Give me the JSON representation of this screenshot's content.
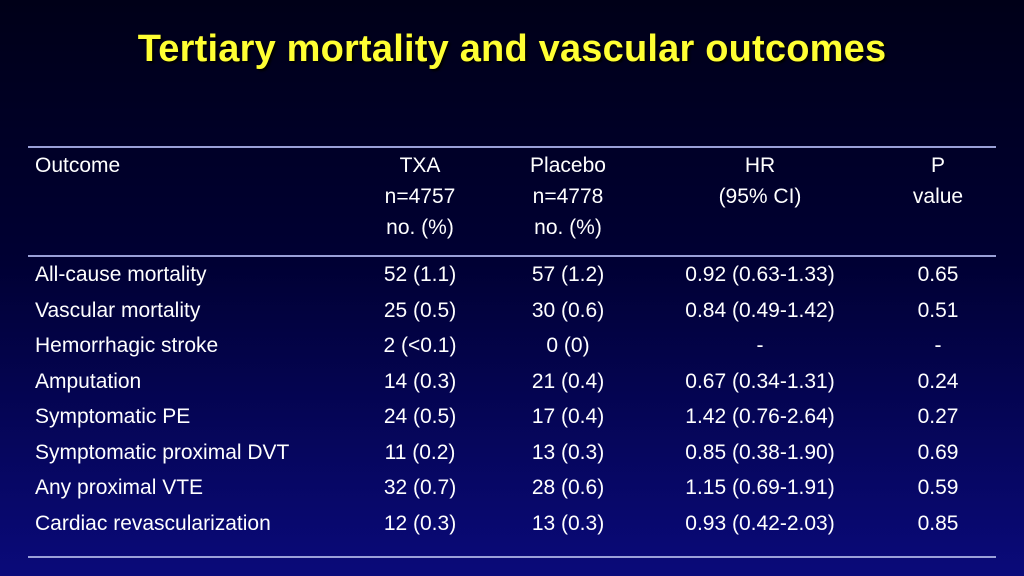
{
  "slide": {
    "title": "Tertiary mortality and vascular outcomes"
  },
  "table": {
    "header": {
      "outcome": "Outcome",
      "txa": [
        "TXA",
        "n=4757",
        "no. (%)"
      ],
      "placebo": [
        "Placebo",
        "n=4778",
        "no. (%)"
      ],
      "hr": [
        "HR",
        "(95% CI)"
      ],
      "p": [
        "P",
        "value"
      ]
    },
    "rows": [
      {
        "outcome": "All-cause mortality",
        "txa": "52 (1.1)",
        "placebo": "57 (1.2)",
        "hr": "0.92 (0.63-1.33)",
        "p": "0.65"
      },
      {
        "outcome": "Vascular mortality",
        "txa": "25 (0.5)",
        "placebo": "30 (0.6)",
        "hr": "0.84 (0.49-1.42)",
        "p": "0.51"
      },
      {
        "outcome": "Hemorrhagic stroke",
        "txa": "2 (<0.1)",
        "placebo": "0 (0)",
        "hr": "-",
        "p": "-"
      },
      {
        "outcome": "Amputation",
        "txa": "14 (0.3)",
        "placebo": "21 (0.4)",
        "hr": "0.67 (0.34-1.31)",
        "p": "0.24"
      },
      {
        "outcome": "Symptomatic PE",
        "txa": "24 (0.5)",
        "placebo": "17 (0.4)",
        "hr": "1.42 (0.76-2.64)",
        "p": "0.27"
      },
      {
        "outcome": "Symptomatic proximal DVT",
        "txa": "11 (0.2)",
        "placebo": "13 (0.3)",
        "hr": "0.85 (0.38-1.90)",
        "p": "0.69"
      },
      {
        "outcome": "Any proximal VTE",
        "txa": "32 (0.7)",
        "placebo": "28 (0.6)",
        "hr": "1.15 (0.69-1.91)",
        "p": "0.59"
      },
      {
        "outcome": "Cardiac revascularization",
        "txa": "12 (0.3)",
        "placebo": "13 (0.3)",
        "hr": "0.93 (0.42-2.03)",
        "p": "0.85"
      }
    ]
  },
  "colors": {
    "title": "#ffff33",
    "text": "#ffffff",
    "rule": "#9aa0d8",
    "background_top": "#000018",
    "background_bottom": "#0a0a7a"
  }
}
